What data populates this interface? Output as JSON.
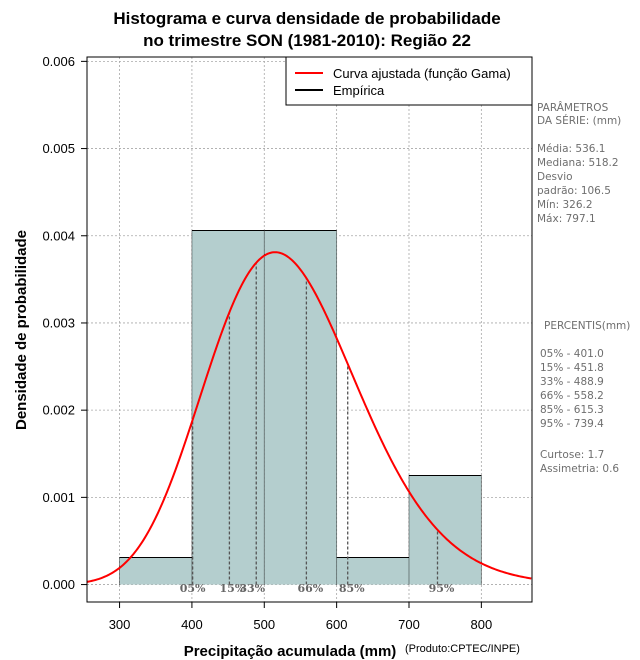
{
  "chart_data": {
    "type": "bar",
    "title_lines": [
      "Histograma e curva densidade de probabilidade",
      "no trimestre SON (1981-2010): Região 22"
    ],
    "xlabel": "Precipitação acumulada (mm)",
    "ylabel": "Densidade de probabilidade",
    "credit": "(Produto:CPTEC/INPE)",
    "xlim": [
      255,
      870
    ],
    "ylim": [
      -0.0002,
      0.00605
    ],
    "x_ticks": [
      300,
      400,
      500,
      600,
      700,
      800
    ],
    "y_ticks": [
      0.0,
      0.001,
      0.002,
      0.003,
      0.004,
      0.005,
      0.006
    ],
    "y_tick_labels": [
      "0.000",
      "0.001",
      "0.002",
      "0.003",
      "0.004",
      "0.005",
      "0.006"
    ],
    "grid": true,
    "histogram": [
      {
        "x0": 300,
        "x1": 400,
        "density": 0.00031
      },
      {
        "x0": 400,
        "x1": 500,
        "density": 0.00406
      },
      {
        "x0": 500,
        "x1": 600,
        "density": 0.00406
      },
      {
        "x0": 600,
        "x1": 700,
        "density": 0.00031
      },
      {
        "x0": 700,
        "x1": 800,
        "density": 0.00125
      }
    ],
    "fitted_curve": {
      "name": "Curva ajustada (função Gama)",
      "mean": 536.1,
      "sd": 106.5,
      "peak_x": 518,
      "peak_y": 0.00381
    },
    "percentiles": [
      {
        "label": "05%",
        "value": 401.0
      },
      {
        "label": "15%",
        "value": 451.8
      },
      {
        "label": "33%",
        "value": 488.9
      },
      {
        "label": "66%",
        "value": 558.2
      },
      {
        "label": "85%",
        "value": 615.3
      },
      {
        "label": "95%",
        "value": 739.4
      }
    ],
    "legend": {
      "position": "top-right",
      "entries": [
        {
          "label": "Curva ajustada (função Gama)",
          "color": "#ff0000"
        },
        {
          "label": "Empírica",
          "color": "#000000"
        }
      ]
    },
    "colors": {
      "bar_fill": "#b4cece",
      "curve": "#ff0000",
      "grid": "#a8a8a8",
      "percentile_line": "#555555",
      "side_text": "#6e6e6e"
    }
  },
  "side_panel": {
    "params_title_1": "PARÂMETROS",
    "params_title_2": " DA SÉRIE: (mm)",
    "media": "Média:  536.1",
    "mediana": "Mediana:  518.2",
    "desvio": "Desvio",
    "padrao": "padrão:  106.5",
    "min": "Mín:  326.2",
    "max": "Máx:  797.1",
    "percentis_title": "PERCENTIS(mm)",
    "p05": "05% -  401.0",
    "p15": "15% -  451.8",
    "p33": "33% -  488.9",
    "p66": "66% -  558.2",
    "p85": "85% -  615.3",
    "p95": "95% -  739.4",
    "curtose": "Curtose:  1.7",
    "assimetria": "Assimetria:  0.6"
  }
}
